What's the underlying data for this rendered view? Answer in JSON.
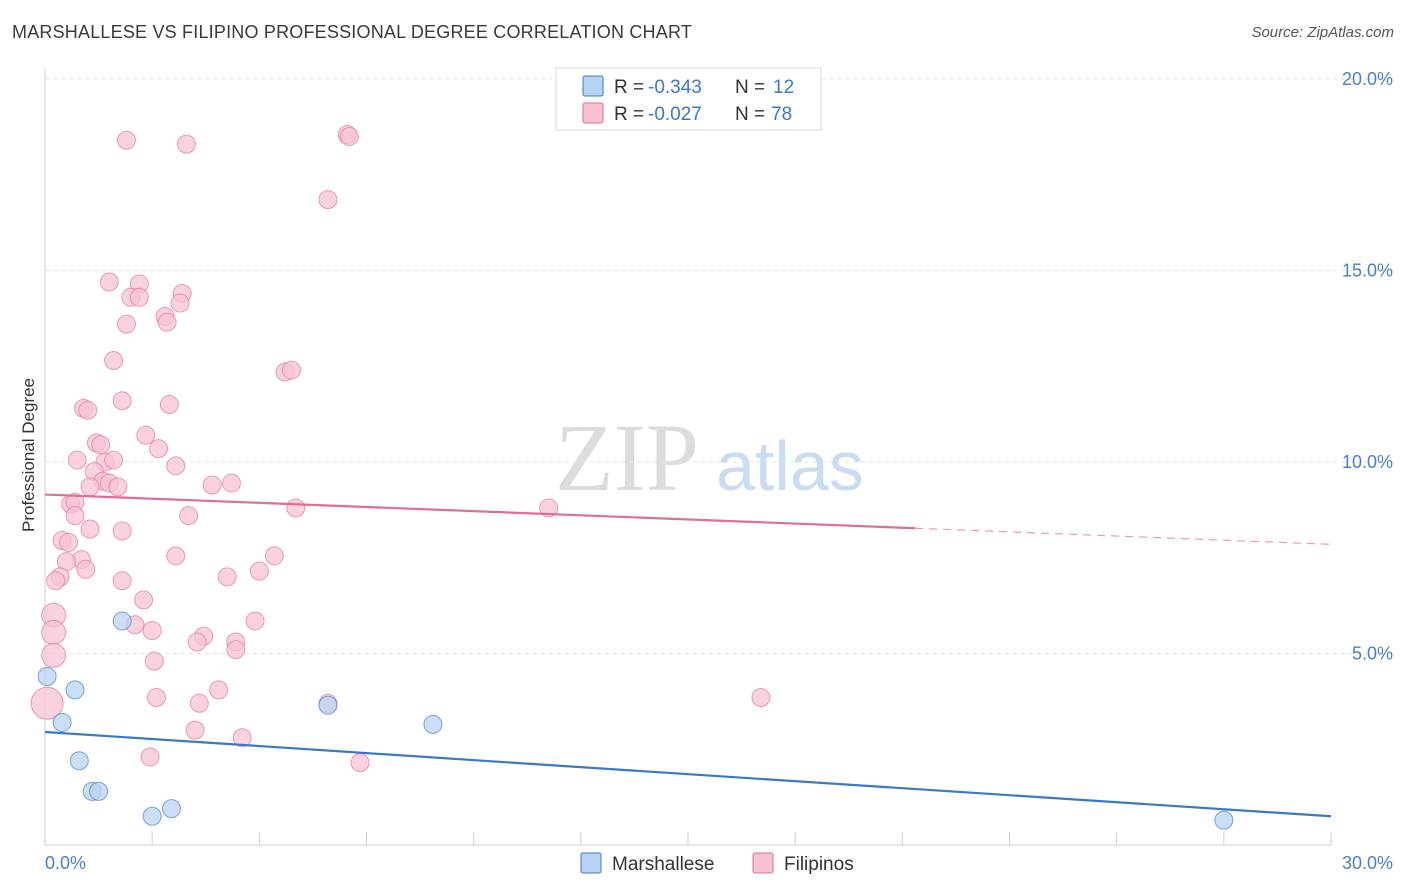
{
  "header": {
    "title": "MARSHALLESE VS FILIPINO PROFESSIONAL DEGREE CORRELATION CHART",
    "source": "Source: ZipAtlas.com"
  },
  "watermark": {
    "zip": "ZIP",
    "atlas": "atlas"
  },
  "colors": {
    "blue": "#3a78cc",
    "blue_fill": "#b8d3f4",
    "pink": "#e26d95",
    "pink_fill": "#f7c3d3",
    "axis_text": "#4a7fcc"
  },
  "legend_top": {
    "rows": [
      {
        "r_label": "R = ",
        "r_value": "-0.343",
        "n_label": "N = ",
        "n_value": "12"
      },
      {
        "r_label": "R = ",
        "r_value": "-0.027",
        "n_label": "N = ",
        "n_value": "78"
      }
    ]
  },
  "legend_bottom": {
    "items": [
      "Marshallese",
      "Filipinos"
    ]
  },
  "chart_data": {
    "type": "scatter",
    "title": "MARSHALLESE VS FILIPINO PROFESSIONAL DEGREE CORRELATION CHART",
    "xlabel": "",
    "ylabel": "Professional Degree",
    "xlim": [
      0,
      30
    ],
    "ylim": [
      0,
      20
    ],
    "x_tick_labels": [
      "0.0%",
      "30.0%"
    ],
    "y_ticks": [
      5,
      10,
      15,
      20
    ],
    "y_tick_labels": [
      "5.0%",
      "10.0%",
      "15.0%",
      "20.0%"
    ],
    "grid": true,
    "legend_position": "top-center",
    "series": [
      {
        "name": "Marshallese",
        "r": -0.343,
        "n": 12,
        "trend": {
          "x0": 0,
          "y0": 2.95,
          "x1": 30,
          "y1": 0.75,
          "dashed_from": null
        },
        "points": [
          {
            "x": 0.05,
            "y": 4.4,
            "s": 9
          },
          {
            "x": 0.7,
            "y": 4.05,
            "s": 9
          },
          {
            "x": 0.4,
            "y": 3.2,
            "s": 9
          },
          {
            "x": 0.8,
            "y": 2.2,
            "s": 9
          },
          {
            "x": 1.1,
            "y": 1.4,
            "s": 9
          },
          {
            "x": 1.25,
            "y": 1.4,
            "s": 9
          },
          {
            "x": 1.8,
            "y": 5.85,
            "s": 9
          },
          {
            "x": 2.5,
            "y": 0.75,
            "s": 9
          },
          {
            "x": 2.95,
            "y": 0.95,
            "s": 9
          },
          {
            "x": 6.6,
            "y": 3.65,
            "s": 9
          },
          {
            "x": 9.05,
            "y": 3.15,
            "s": 9
          },
          {
            "x": 27.5,
            "y": 0.65,
            "s": 9
          }
        ]
      },
      {
        "name": "Filipinos",
        "r": -0.027,
        "n": 78,
        "trend": {
          "x0": 0,
          "y0": 9.15,
          "x1": 30,
          "y1": 7.85,
          "dashed_from": 20.3
        },
        "points": [
          {
            "x": 1.9,
            "y": 18.4,
            "s": 9
          },
          {
            "x": 3.3,
            "y": 18.3,
            "s": 9
          },
          {
            "x": 7.05,
            "y": 18.55,
            "s": 9
          },
          {
            "x": 7.1,
            "y": 18.5,
            "s": 9
          },
          {
            "x": 6.6,
            "y": 16.85,
            "s": 9
          },
          {
            "x": 1.5,
            "y": 14.7,
            "s": 9
          },
          {
            "x": 2.2,
            "y": 14.65,
            "s": 9
          },
          {
            "x": 2.0,
            "y": 14.3,
            "s": 9
          },
          {
            "x": 2.2,
            "y": 14.3,
            "s": 9
          },
          {
            "x": 3.2,
            "y": 14.4,
            "s": 9
          },
          {
            "x": 3.15,
            "y": 14.15,
            "s": 9
          },
          {
            "x": 2.8,
            "y": 13.8,
            "s": 9
          },
          {
            "x": 2.85,
            "y": 13.65,
            "s": 9
          },
          {
            "x": 1.9,
            "y": 13.6,
            "s": 9
          },
          {
            "x": 1.6,
            "y": 12.65,
            "s": 9
          },
          {
            "x": 5.6,
            "y": 12.35,
            "s": 9
          },
          {
            "x": 5.75,
            "y": 12.4,
            "s": 9
          },
          {
            "x": 1.8,
            "y": 11.6,
            "s": 9
          },
          {
            "x": 2.9,
            "y": 11.5,
            "s": 9
          },
          {
            "x": 0.9,
            "y": 11.4,
            "s": 9
          },
          {
            "x": 1.0,
            "y": 11.35,
            "s": 9
          },
          {
            "x": 2.35,
            "y": 10.7,
            "s": 9
          },
          {
            "x": 1.2,
            "y": 10.5,
            "s": 9
          },
          {
            "x": 1.3,
            "y": 10.45,
            "s": 9
          },
          {
            "x": 2.65,
            "y": 10.35,
            "s": 9
          },
          {
            "x": 0.75,
            "y": 10.05,
            "s": 9
          },
          {
            "x": 1.4,
            "y": 10.0,
            "s": 9
          },
          {
            "x": 1.6,
            "y": 10.05,
            "s": 9
          },
          {
            "x": 3.05,
            "y": 9.9,
            "s": 9
          },
          {
            "x": 1.15,
            "y": 9.75,
            "s": 9
          },
          {
            "x": 1.35,
            "y": 9.5,
            "s": 9
          },
          {
            "x": 1.5,
            "y": 9.45,
            "s": 9
          },
          {
            "x": 1.05,
            "y": 9.35,
            "s": 9
          },
          {
            "x": 1.7,
            "y": 9.35,
            "s": 9
          },
          {
            "x": 3.9,
            "y": 9.4,
            "s": 9
          },
          {
            "x": 4.35,
            "y": 9.45,
            "s": 9
          },
          {
            "x": 0.6,
            "y": 8.9,
            "s": 9
          },
          {
            "x": 0.7,
            "y": 8.95,
            "s": 9
          },
          {
            "x": 5.85,
            "y": 8.8,
            "s": 9
          },
          {
            "x": 11.75,
            "y": 8.8,
            "s": 9
          },
          {
            "x": 0.7,
            "y": 8.6,
            "s": 9
          },
          {
            "x": 3.35,
            "y": 8.6,
            "s": 9
          },
          {
            "x": 1.05,
            "y": 8.25,
            "s": 9
          },
          {
            "x": 1.8,
            "y": 8.2,
            "s": 9
          },
          {
            "x": 0.4,
            "y": 7.95,
            "s": 9
          },
          {
            "x": 0.55,
            "y": 7.9,
            "s": 9
          },
          {
            "x": 0.85,
            "y": 7.45,
            "s": 9
          },
          {
            "x": 0.5,
            "y": 7.4,
            "s": 9
          },
          {
            "x": 3.05,
            "y": 7.55,
            "s": 9
          },
          {
            "x": 5.35,
            "y": 7.55,
            "s": 9
          },
          {
            "x": 0.95,
            "y": 7.2,
            "s": 9
          },
          {
            "x": 5.0,
            "y": 7.15,
            "s": 9
          },
          {
            "x": 0.35,
            "y": 7.0,
            "s": 9
          },
          {
            "x": 4.25,
            "y": 7.0,
            "s": 9
          },
          {
            "x": 0.25,
            "y": 6.9,
            "s": 9
          },
          {
            "x": 1.8,
            "y": 6.9,
            "s": 9
          },
          {
            "x": 2.3,
            "y": 6.4,
            "s": 9
          },
          {
            "x": 0.2,
            "y": 6.0,
            "s": 12
          },
          {
            "x": 2.1,
            "y": 5.75,
            "s": 9
          },
          {
            "x": 4.9,
            "y": 5.85,
            "s": 9
          },
          {
            "x": 2.5,
            "y": 5.6,
            "s": 9
          },
          {
            "x": 3.7,
            "y": 5.45,
            "s": 9
          },
          {
            "x": 0.2,
            "y": 5.55,
            "s": 12
          },
          {
            "x": 3.55,
            "y": 5.3,
            "s": 9
          },
          {
            "x": 4.45,
            "y": 5.3,
            "s": 9
          },
          {
            "x": 4.45,
            "y": 5.1,
            "s": 9
          },
          {
            "x": 0.2,
            "y": 4.95,
            "s": 12
          },
          {
            "x": 2.55,
            "y": 4.8,
            "s": 9
          },
          {
            "x": 4.05,
            "y": 4.05,
            "s": 9
          },
          {
            "x": 2.6,
            "y": 3.85,
            "s": 9
          },
          {
            "x": 16.7,
            "y": 3.85,
            "s": 9
          },
          {
            "x": 6.6,
            "y": 3.7,
            "s": 9
          },
          {
            "x": 3.6,
            "y": 3.7,
            "s": 9
          },
          {
            "x": 0.05,
            "y": 3.7,
            "s": 16
          },
          {
            "x": 3.5,
            "y": 3.0,
            "s": 9
          },
          {
            "x": 4.6,
            "y": 2.8,
            "s": 9
          },
          {
            "x": 2.45,
            "y": 2.3,
            "s": 9
          },
          {
            "x": 7.35,
            "y": 2.15,
            "s": 9
          }
        ]
      }
    ]
  }
}
